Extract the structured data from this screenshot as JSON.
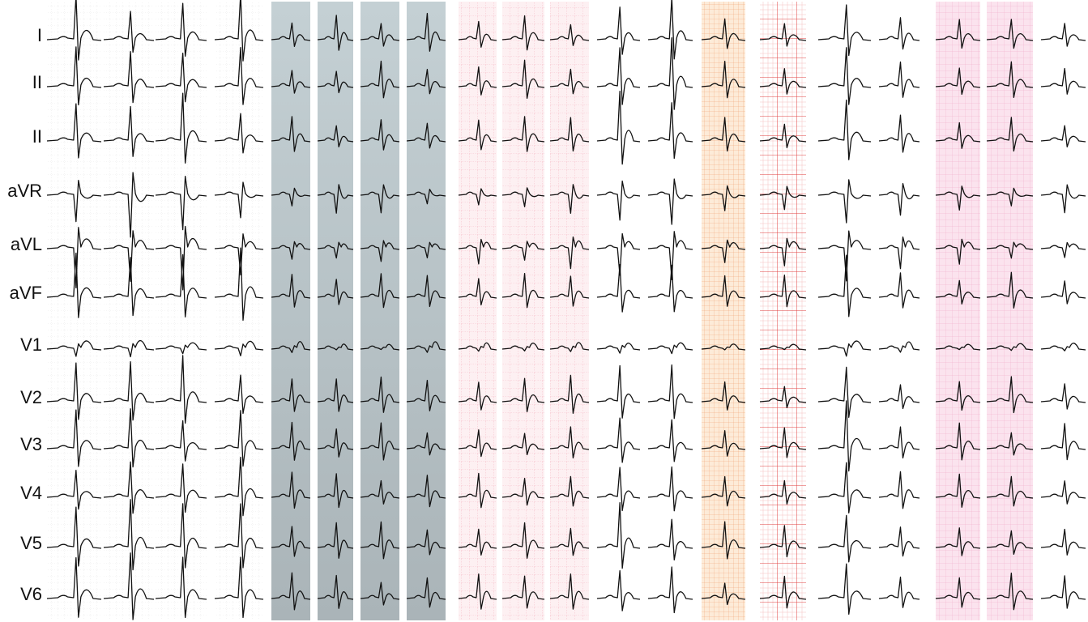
{
  "leads": [
    "I",
    "II",
    "II",
    "aVR",
    "aVL",
    "aVF",
    "V1",
    "V2",
    "V3",
    "V4",
    "V5",
    "V6"
  ]
}
